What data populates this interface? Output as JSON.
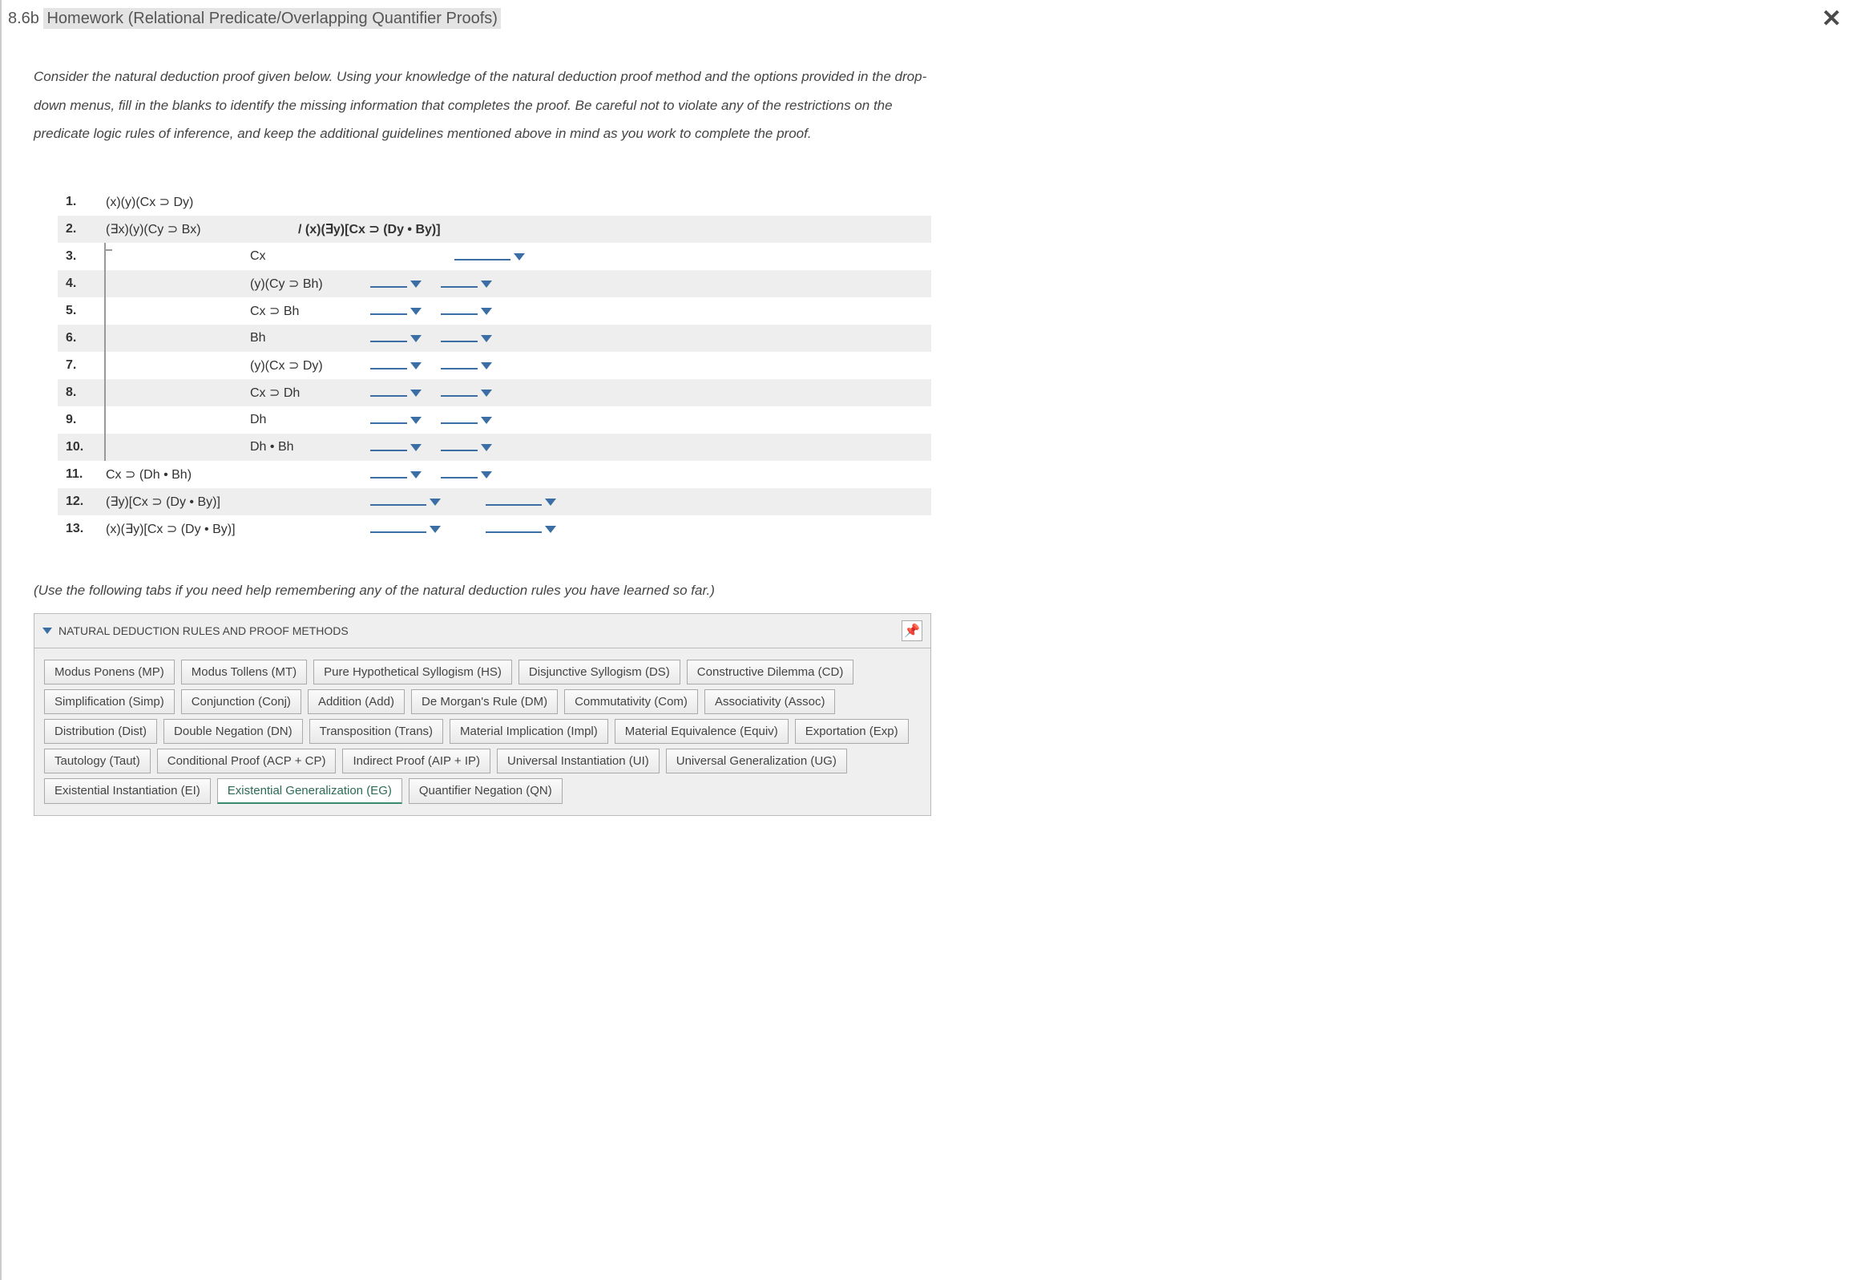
{
  "header": {
    "prefix": "8.6b ",
    "title": "Homework (Relational Predicate/Overlapping Quantifier Proofs)"
  },
  "instructions": "Consider the natural deduction proof given below. Using your knowledge of the natural deduction proof method and the options provided in the drop-down menus, fill in the blanks to identify the missing information that completes the proof. Be careful not to violate any of the restrictions on the predicate logic rules of inference, and keep the additional guidelines mentioned above in mind as you work to complete the proof.",
  "proof": {
    "rows": [
      {
        "num": "1.",
        "formula": "(x)(y)(Cx ⊃ Dy)",
        "shaded": false,
        "conclusion": "",
        "dropdowns": 0,
        "indent": 0
      },
      {
        "num": "2.",
        "formula": "(∃x)(y)(Cy ⊃ Bx)",
        "shaded": true,
        "conclusion": "/ (x)(∃y)[Cx ⊃ (Dy • By)]",
        "dropdowns": 0,
        "indent": 0
      },
      {
        "num": "3.",
        "formula": "",
        "formula2": "Cx",
        "shaded": false,
        "dropdowns": 1,
        "dd_wide": true,
        "indent": 1,
        "cp_start": true
      },
      {
        "num": "4.",
        "formula": "",
        "formula2": "(y)(Cy ⊃ Bh)",
        "shaded": true,
        "dropdowns": 2,
        "indent": 1
      },
      {
        "num": "5.",
        "formula": "",
        "formula2": "Cx ⊃ Bh",
        "shaded": false,
        "dropdowns": 2,
        "indent": 1
      },
      {
        "num": "6.",
        "formula": "",
        "formula2": "Bh",
        "shaded": true,
        "dropdowns": 2,
        "indent": 1
      },
      {
        "num": "7.",
        "formula": "",
        "formula2": "(y)(Cx ⊃ Dy)",
        "shaded": false,
        "dropdowns": 2,
        "indent": 1
      },
      {
        "num": "8.",
        "formula": "",
        "formula2": "Cx ⊃ Dh",
        "shaded": true,
        "dropdowns": 2,
        "indent": 1
      },
      {
        "num": "9.",
        "formula": "",
        "formula2": "Dh",
        "shaded": false,
        "dropdowns": 2,
        "indent": 1
      },
      {
        "num": "10.",
        "formula": "",
        "formula2": "Dh • Bh",
        "shaded": true,
        "dropdowns": 2,
        "indent": 1
      },
      {
        "num": "11.",
        "formula": "Cx ⊃ (Dh • Bh)",
        "shaded": false,
        "dropdowns": 2,
        "indent": 0
      },
      {
        "num": "12.",
        "formula": "(∃y)[Cx ⊃ (Dy • By)]",
        "shaded": true,
        "dropdowns": 2,
        "dd_wide": true,
        "indent": 0
      },
      {
        "num": "13.",
        "formula": "(x)(∃y)[Cx ⊃ (Dy • By)]",
        "shaded": false,
        "dropdowns": 2,
        "dd_wide": true,
        "indent": 0
      }
    ]
  },
  "help_note": "(Use the following tabs if you need help remembering any of the natural deduction rules you have learned so far.)",
  "rules_panel": {
    "header": "NATURAL DEDUCTION RULES AND PROOF METHODS",
    "tabs": [
      {
        "label": "Modus Ponens (MP)",
        "active": false
      },
      {
        "label": "Modus Tollens (MT)",
        "active": false
      },
      {
        "label": "Pure Hypothetical Syllogism (HS)",
        "active": false
      },
      {
        "label": "Disjunctive Syllogism (DS)",
        "active": false
      },
      {
        "label": "Constructive Dilemma (CD)",
        "active": false
      },
      {
        "label": "Simplification (Simp)",
        "active": false
      },
      {
        "label": "Conjunction (Conj)",
        "active": false
      },
      {
        "label": "Addition (Add)",
        "active": false
      },
      {
        "label": "De Morgan's Rule (DM)",
        "active": false
      },
      {
        "label": "Commutativity (Com)",
        "active": false
      },
      {
        "label": "Associativity (Assoc)",
        "active": false
      },
      {
        "label": "Distribution (Dist)",
        "active": false
      },
      {
        "label": "Double Negation (DN)",
        "active": false
      },
      {
        "label": "Transposition (Trans)",
        "active": false
      },
      {
        "label": "Material Implication (Impl)",
        "active": false
      },
      {
        "label": "Material Equivalence (Equiv)",
        "active": false
      },
      {
        "label": "Exportation (Exp)",
        "active": false
      },
      {
        "label": "Tautology (Taut)",
        "active": false
      },
      {
        "label": "Conditional Proof (ACP + CP)",
        "active": false
      },
      {
        "label": "Indirect Proof (AIP + IP)",
        "active": false
      },
      {
        "label": "Universal Instantiation (UI)",
        "active": false
      },
      {
        "label": "Universal Generalization (UG)",
        "active": false
      },
      {
        "label": "Existential Instantiation (EI)",
        "active": false
      },
      {
        "label": "Existential Generalization (EG)",
        "active": true
      },
      {
        "label": "Quantifier Negation (QN)",
        "active": false
      }
    ]
  },
  "colors": {
    "accent_blue": "#3a6ea5",
    "accent_green": "#3a8a6e",
    "shaded_row": "#eeeeee",
    "panel_bg": "#efefef",
    "border": "#bbbbbb"
  }
}
